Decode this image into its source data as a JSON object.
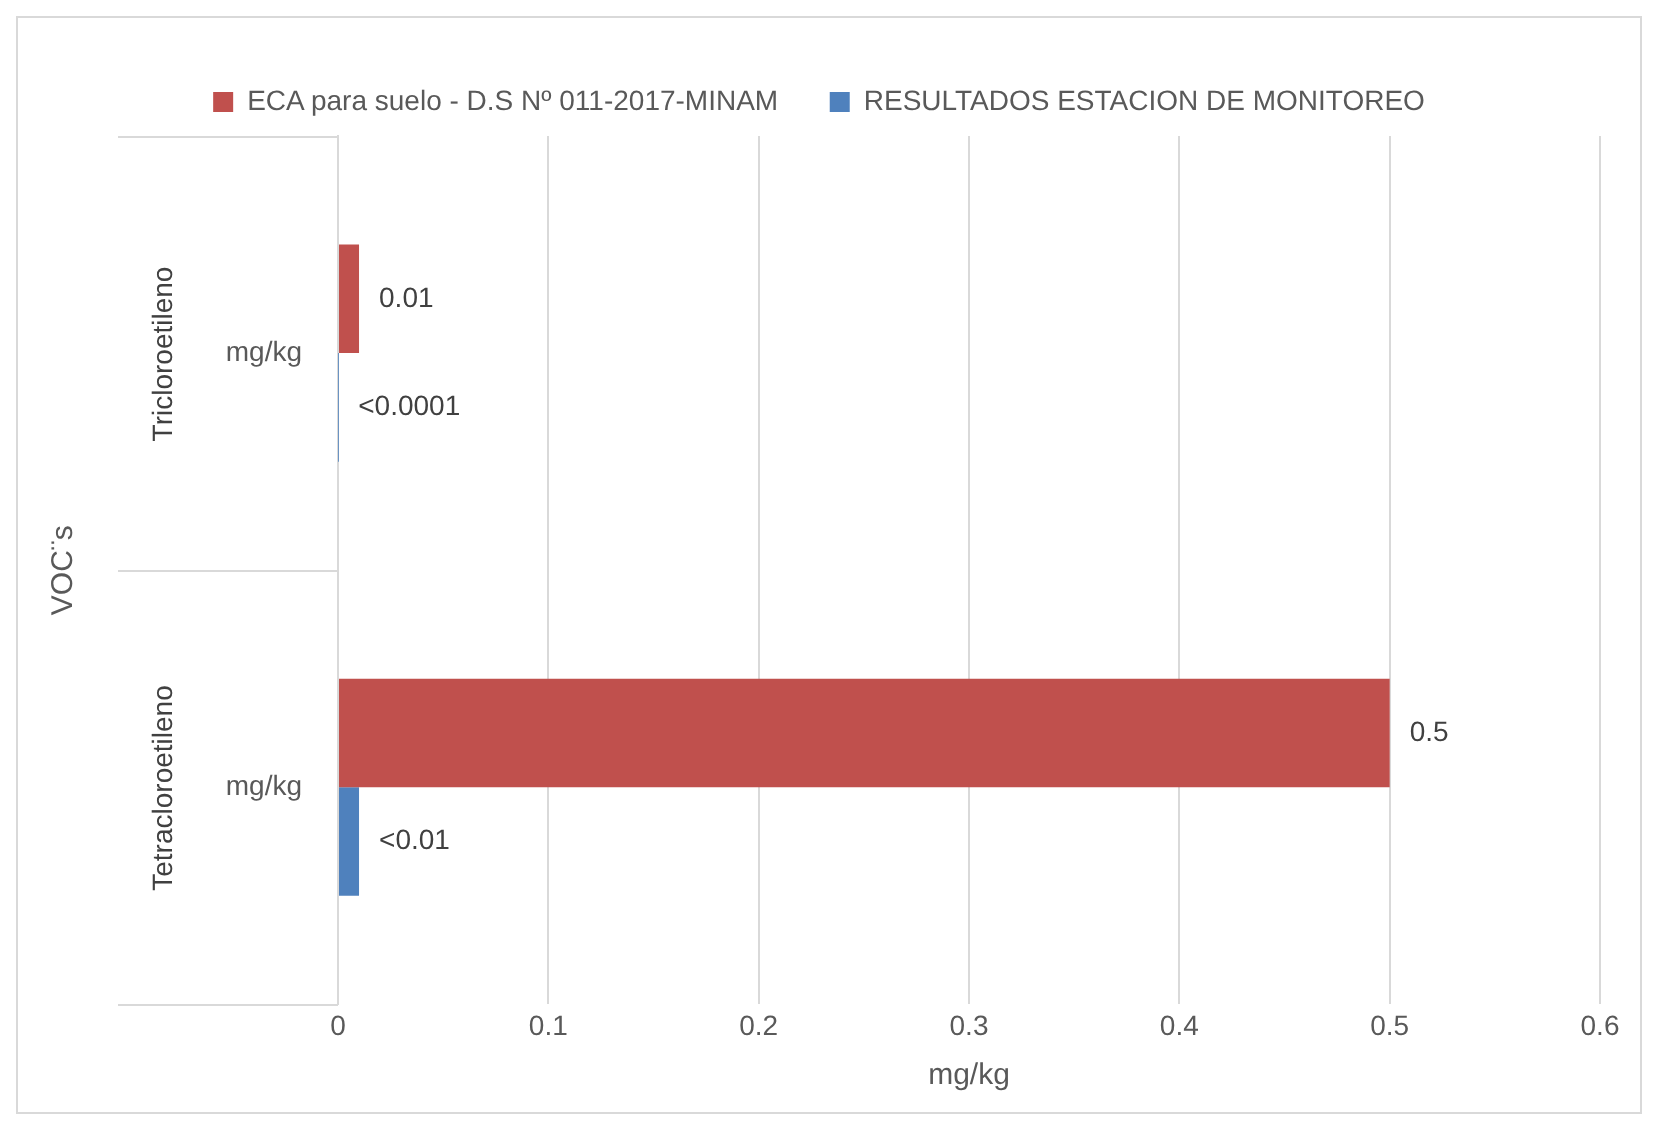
{
  "chart_data": {
    "type": "bar",
    "orientation": "horizontal",
    "xlabel": "mg/kg",
    "ylabel": "VOC¨s",
    "categories": [
      "mg/kg",
      "mg/kg"
    ],
    "annotations": [
      "Tricloroetileno",
      "Tetracloroetileno"
    ],
    "series": [
      {
        "name": "ECA para suelo - D.S Nº 011-2017-MINAM",
        "color": "#c0504d",
        "values": [
          0.01,
          0.5
        ],
        "value_labels": [
          "0.01",
          "0.5"
        ]
      },
      {
        "name": "RESULTADOS ESTACION DE MONITOREO",
        "color": "#4f81bd",
        "values": [
          0.0001,
          0.01
        ],
        "value_labels": [
          "<0.0001",
          "<0.01"
        ]
      }
    ],
    "xlim": [
      0,
      0.6
    ],
    "xticks": [
      0,
      0.1,
      0.2,
      0.3,
      0.4,
      0.5,
      0.6
    ],
    "grid": "x",
    "legend": "top"
  }
}
